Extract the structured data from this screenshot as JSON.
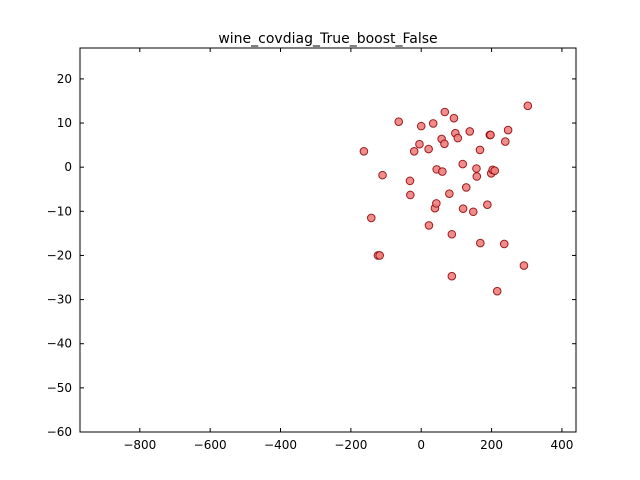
{
  "chart_data": {
    "type": "scatter",
    "title": "wine_covdiag_True_boost_False",
    "xlabel": "",
    "ylabel": "",
    "xlim": [
      -970,
      440
    ],
    "ylim": [
      -60,
      27
    ],
    "xticks": [
      -800,
      -600,
      -400,
      -200,
      0,
      200,
      400
    ],
    "yticks": [
      -60,
      -50,
      -40,
      -30,
      -20,
      -10,
      0,
      10,
      20
    ],
    "xtick_labels": [
      "−800",
      "−600",
      "−400",
      "−200",
      "0",
      "200",
      "400"
    ],
    "ytick_labels": [
      "−60",
      "−50",
      "−40",
      "−30",
      "−20",
      "−10",
      "0",
      "10",
      "20"
    ],
    "grid": false,
    "colors": {
      "marker_fill": "#f08080",
      "marker_edge": "#8b0000",
      "axes": "#000000"
    },
    "points": [
      {
        "x": -163,
        "y": 3.6
      },
      {
        "x": -142,
        "y": -11.5
      },
      {
        "x": -123,
        "y": -20.0
      },
      {
        "x": -118,
        "y": -20.0
      },
      {
        "x": -110,
        "y": -1.8
      },
      {
        "x": -64,
        "y": 10.3
      },
      {
        "x": -32,
        "y": -3.1
      },
      {
        "x": -31,
        "y": -6.3
      },
      {
        "x": -20,
        "y": 3.6
      },
      {
        "x": -5,
        "y": 5.2
      },
      {
        "x": 0,
        "y": 9.3
      },
      {
        "x": 21,
        "y": 4.1
      },
      {
        "x": 22,
        "y": -13.2
      },
      {
        "x": 34,
        "y": 9.9
      },
      {
        "x": 39,
        "y": -9.3
      },
      {
        "x": 43,
        "y": -8.2
      },
      {
        "x": 44,
        "y": -0.5
      },
      {
        "x": 58,
        "y": 6.4
      },
      {
        "x": 60,
        "y": -1.0
      },
      {
        "x": 66,
        "y": 5.3
      },
      {
        "x": 67,
        "y": 12.5
      },
      {
        "x": 80,
        "y": -6.0
      },
      {
        "x": 87,
        "y": -15.2
      },
      {
        "x": 87,
        "y": -24.7
      },
      {
        "x": 93,
        "y": 11.1
      },
      {
        "x": 97,
        "y": 7.7
      },
      {
        "x": 104,
        "y": 6.6
      },
      {
        "x": 118,
        "y": 0.7
      },
      {
        "x": 119,
        "y": -9.4
      },
      {
        "x": 128,
        "y": -4.6
      },
      {
        "x": 138,
        "y": 8.1
      },
      {
        "x": 148,
        "y": -10.1
      },
      {
        "x": 157,
        "y": -0.3
      },
      {
        "x": 158,
        "y": -2.1
      },
      {
        "x": 167,
        "y": 3.9
      },
      {
        "x": 168,
        "y": -17.2
      },
      {
        "x": 188,
        "y": -8.5
      },
      {
        "x": 195,
        "y": 7.3
      },
      {
        "x": 197,
        "y": 7.3
      },
      {
        "x": 199,
        "y": -1.4
      },
      {
        "x": 203,
        "y": -0.6
      },
      {
        "x": 209,
        "y": -0.8
      },
      {
        "x": 216,
        "y": -28.1
      },
      {
        "x": 236,
        "y": -17.4
      },
      {
        "x": 239,
        "y": 5.8
      },
      {
        "x": 247,
        "y": 8.4
      },
      {
        "x": 292,
        "y": -22.3
      },
      {
        "x": 303,
        "y": 13.9
      }
    ]
  }
}
